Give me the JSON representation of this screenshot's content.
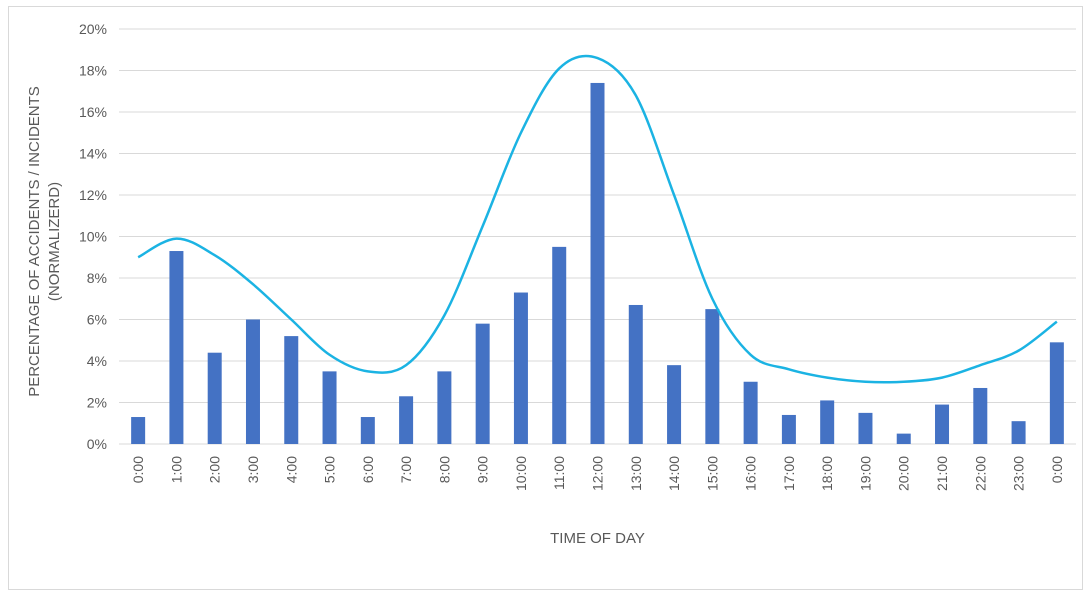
{
  "chart_data": {
    "type": "bar",
    "title": "",
    "xlabel": "TIME OF DAY",
    "ylabel_lines": [
      "PERCENTAGE OF ACCIDENTS / INCIDENTS",
      "(NORMALIZERD)"
    ],
    "categories": [
      "0:00",
      "1:00",
      "2:00",
      "3:00",
      "4:00",
      "5:00",
      "6:00",
      "7:00",
      "8:00",
      "9:00",
      "10:00",
      "11:00",
      "12:00",
      "13:00",
      "14:00",
      "15:00",
      "16:00",
      "17:00",
      "18:00",
      "19:00",
      "20:00",
      "21:00",
      "22:00",
      "23:00",
      "0:00"
    ],
    "series": [
      {
        "type": "bar",
        "values": [
          1.3,
          9.3,
          4.4,
          6.0,
          5.2,
          3.5,
          1.3,
          2.3,
          3.5,
          5.8,
          7.3,
          9.5,
          17.4,
          6.7,
          3.8,
          6.5,
          3.0,
          1.4,
          2.1,
          1.5,
          0.5,
          1.9,
          2.7,
          1.1,
          4.9
        ],
        "color": "#4472c4"
      },
      {
        "type": "line",
        "values": [
          9.0,
          9.9,
          9.1,
          7.7,
          6.0,
          4.3,
          3.5,
          3.8,
          6.2,
          10.5,
          15.0,
          18.1,
          18.6,
          16.8,
          12.0,
          7.0,
          4.3,
          3.6,
          3.2,
          3.0,
          3.0,
          3.2,
          3.8,
          4.5,
          5.9
        ],
        "color": "#1bb3e3"
      }
    ],
    "y_ticks": [
      "0%",
      "2%",
      "4%",
      "6%",
      "8%",
      "10%",
      "12%",
      "14%",
      "16%",
      "18%",
      "20%"
    ],
    "ylim": [
      0,
      20
    ],
    "grid": true,
    "legend": "none"
  }
}
